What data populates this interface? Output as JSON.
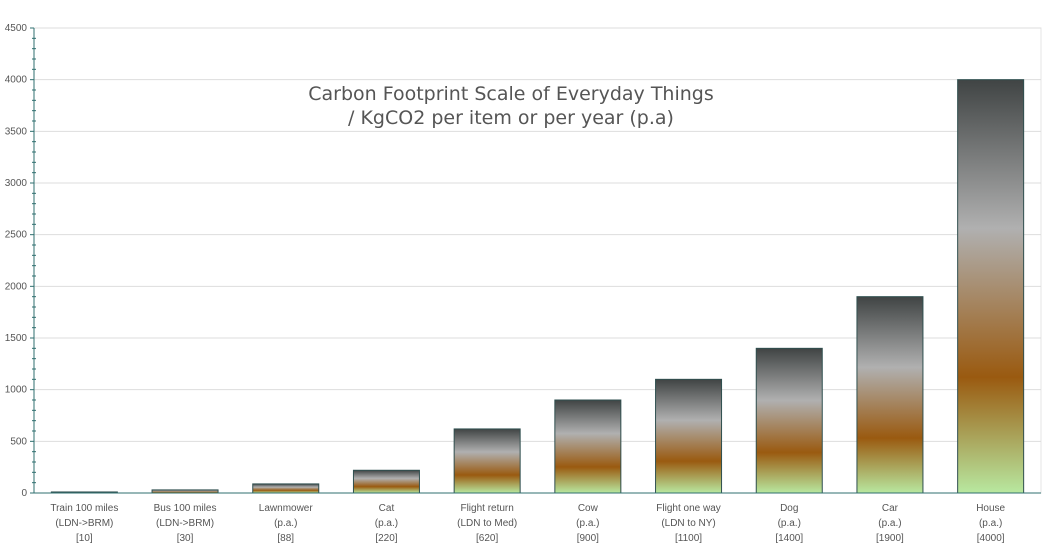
{
  "chart_data": {
    "type": "bar",
    "title_lines": [
      "Carbon Footprint Scale of Everyday Things",
      "/ KgCO2 per item or per year (p.a)"
    ],
    "xlabel": "",
    "ylabel": "",
    "ylim": [
      0,
      4500
    ],
    "yticks": [
      0,
      500,
      1000,
      1500,
      2000,
      2500,
      3000,
      3500,
      4000,
      4500
    ],
    "grid": true,
    "legend": "none",
    "categories": [
      [
        "Train 100 miles",
        "(LDN->BRM)",
        "[10]"
      ],
      [
        "Bus 100 miles",
        "(LDN->BRM)",
        "[30]"
      ],
      [
        "Lawnmower",
        "(p.a.)",
        "[88]"
      ],
      [
        "Cat",
        "(p.a.)",
        "[220]"
      ],
      [
        "Flight return",
        "(LDN to Med)",
        "[620]"
      ],
      [
        "Cow",
        "(p.a.)",
        "[900]"
      ],
      [
        "Flight one way",
        "(LDN to NY)",
        "[1100]"
      ],
      [
        "Dog",
        "(p.a.)",
        "[1400]"
      ],
      [
        "Car",
        "(p.a.)",
        "[1900]"
      ],
      [
        "House",
        "(p.a.)",
        "[4000]"
      ]
    ],
    "values": [
      10,
      30,
      88,
      220,
      620,
      900,
      1100,
      1400,
      1900,
      4000
    ],
    "colors": {
      "bar_gradient": [
        "#404444",
        "#b0b0b0",
        "#9a5a10",
        "#b8e8a0"
      ],
      "bar_border": "#2f4f4f",
      "axis": "#2f6f6f",
      "grid": "#dddddd",
      "text": "#555555"
    }
  }
}
